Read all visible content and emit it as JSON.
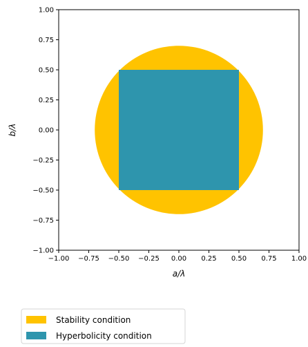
{
  "chart_data": {
    "type": "area",
    "xlabel": "a/λ",
    "ylabel": "b/λ",
    "xlim": [
      -1.0,
      1.0
    ],
    "ylim": [
      -1.0,
      1.0
    ],
    "xticks": [
      -1.0,
      -0.75,
      -0.5,
      -0.25,
      0.0,
      0.25,
      0.5,
      0.75,
      1.0
    ],
    "yticks": [
      -1.0,
      -0.75,
      -0.5,
      -0.25,
      0.0,
      0.25,
      0.5,
      0.75,
      1.0
    ],
    "xtick_labels": [
      "−1.00",
      "−0.75",
      "−0.50",
      "−0.25",
      "0.00",
      "0.25",
      "0.50",
      "0.75",
      "1.00"
    ],
    "ytick_labels": [
      "−1.00",
      "−0.75",
      "−0.50",
      "−0.25",
      "0.00",
      "0.25",
      "0.50",
      "0.75",
      "1.00"
    ],
    "grid": false,
    "legend_position": "bottom-left outside",
    "series": [
      {
        "name": "Stability condition",
        "shape": "circle",
        "center": [
          0.0,
          0.0
        ],
        "radius": 0.7,
        "color": "#FFC300"
      },
      {
        "name": "Hyperbolicity condition",
        "shape": "square",
        "x_range": [
          -0.5,
          0.5
        ],
        "y_range": [
          -0.5,
          0.5
        ],
        "color": "#2E95AD"
      }
    ]
  }
}
